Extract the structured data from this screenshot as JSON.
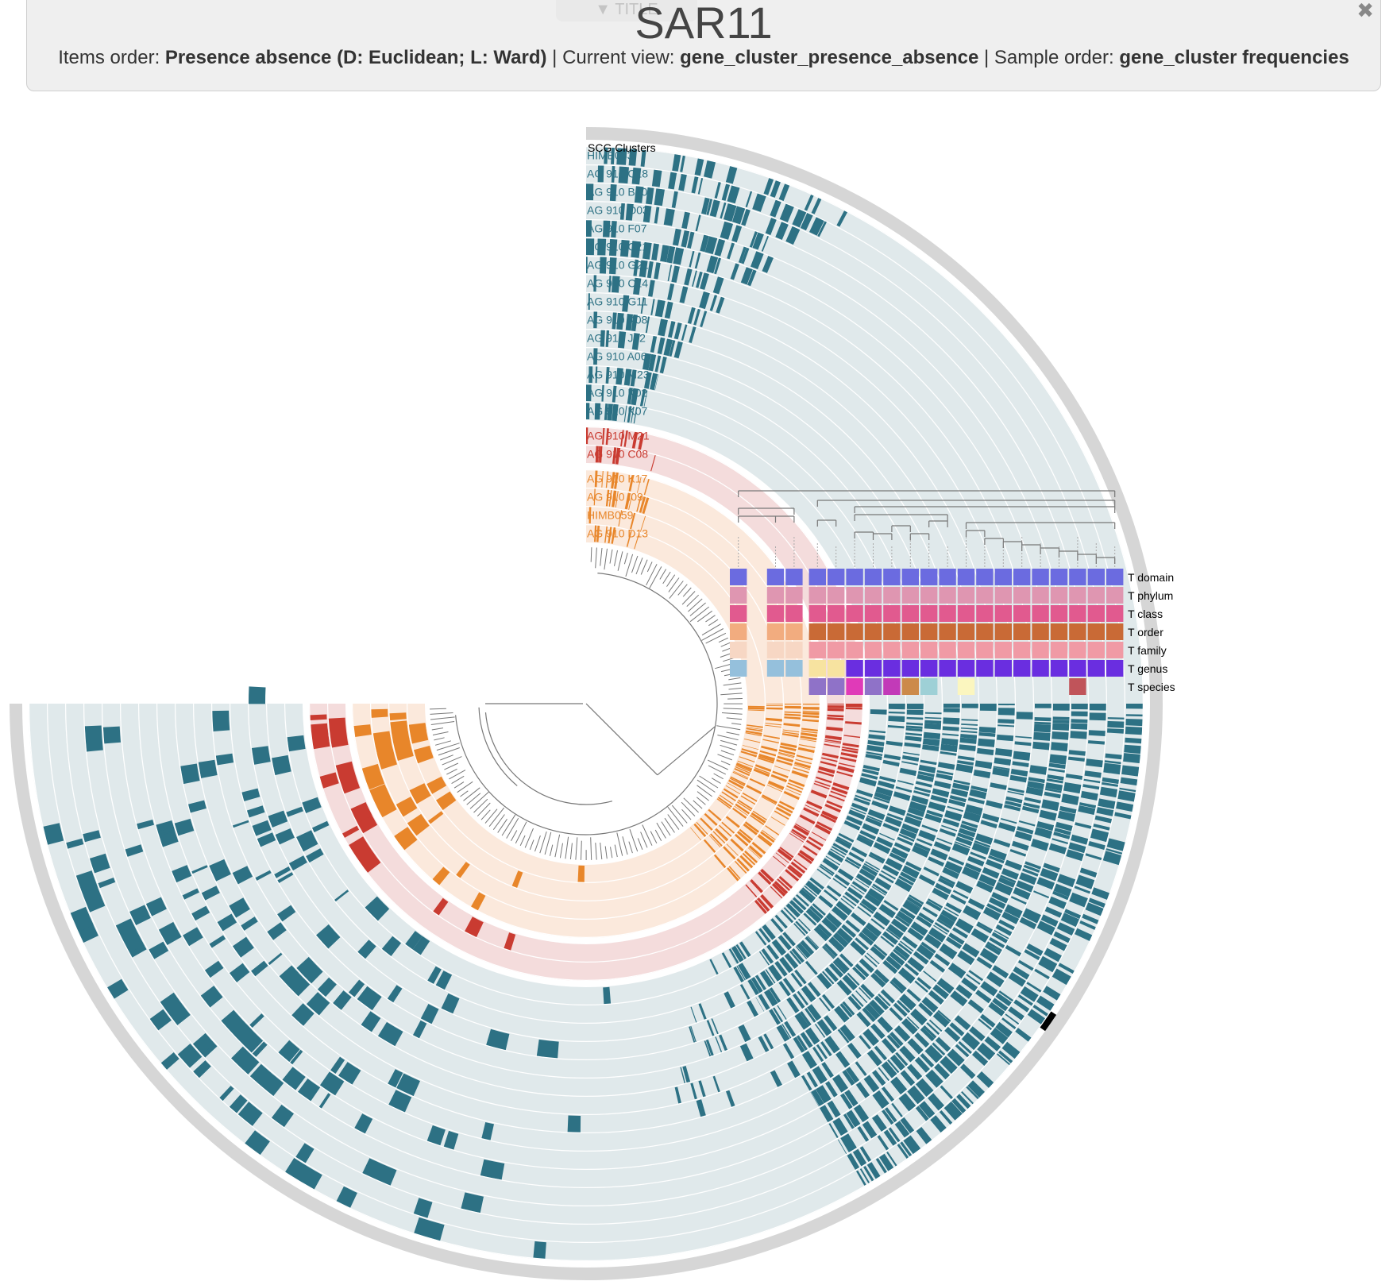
{
  "title_panel": {
    "toggle_label": "▼ TITLE",
    "title": "SAR11",
    "items_order_label": "Items order:",
    "items_order_value": "Presence absence (D: Euclidean; L: Ward)",
    "sep1": " | ",
    "current_view_label": "Current view:",
    "current_view_value": "gene_cluster_presence_absence",
    "sep2": " | ",
    "sample_order_label": "Sample order:",
    "sample_order_value": "gene_cluster frequencies",
    "close_icon": "close-icon"
  },
  "outer_layer_label": "SCG Clusters",
  "colors": {
    "teal": "#2d7184",
    "teal_bg": "#e0e9eb",
    "red": "#c93b31",
    "red_bg": "#f4dcdc",
    "orange": "#e8862a",
    "orange_bg": "#fbe9dc",
    "grey_ring": "#d6d6d6",
    "tree": "#777777"
  },
  "genome_layers": [
    {
      "name": "HIMB083",
      "group": "teal"
    },
    {
      "name": "AG 910 C18",
      "group": "teal"
    },
    {
      "name": "AG 910 B10",
      "group": "teal"
    },
    {
      "name": "AG 910 O03",
      "group": "teal"
    },
    {
      "name": "AG 910 F07",
      "group": "teal"
    },
    {
      "name": "AG 910 C21",
      "group": "teal"
    },
    {
      "name": "AG 910 G21",
      "group": "teal"
    },
    {
      "name": "AG 910 C14",
      "group": "teal"
    },
    {
      "name": "AG 910 G11",
      "group": "teal"
    },
    {
      "name": "AG 910 K08",
      "group": "teal"
    },
    {
      "name": "AG 910 J22",
      "group": "teal"
    },
    {
      "name": "AG 910 A06",
      "group": "teal"
    },
    {
      "name": "AG 910 M23",
      "group": "teal"
    },
    {
      "name": "AG 910 K02",
      "group": "teal"
    },
    {
      "name": "AG 910 K07",
      "group": "teal"
    },
    {
      "name": "AG 910 M21",
      "group": "red"
    },
    {
      "name": "AG 910 C08",
      "group": "red"
    },
    {
      "name": "AG 910 K17",
      "group": "orange"
    },
    {
      "name": "AG 910 I09",
      "group": "orange"
    },
    {
      "name": "HIMB059",
      "group": "orange"
    },
    {
      "name": "AG 910 D13",
      "group": "orange"
    }
  ],
  "taxonomy_rows": [
    {
      "label": "T domain",
      "colors": [
        "#6b6be0",
        "",
        "#6b6be0",
        "#6b6be0",
        "#6b6be0",
        "#6b6be0",
        "#6b6be0",
        "#6b6be0",
        "#6b6be0",
        "#6b6be0",
        "#6b6be0",
        "#6b6be0",
        "#6b6be0",
        "#6b6be0",
        "#6b6be0",
        "#6b6be0",
        "#6b6be0",
        "#6b6be0",
        "#6b6be0",
        "#6b6be0",
        "#6b6be0"
      ]
    },
    {
      "label": "T phylum",
      "colors": [
        "#df96b1",
        "",
        "#df96b1",
        "#df96b1",
        "#df96b1",
        "#df96b1",
        "#df96b1",
        "#df96b1",
        "#df96b1",
        "#df96b1",
        "#df96b1",
        "#df96b1",
        "#df96b1",
        "#df96b1",
        "#df96b1",
        "#df96b1",
        "#df96b1",
        "#df96b1",
        "#df96b1",
        "#df96b1",
        "#df96b1"
      ]
    },
    {
      "label": "T class",
      "colors": [
        "#e15a8f",
        "",
        "#e15a8f",
        "#e15a8f",
        "#e15a8f",
        "#e15a8f",
        "#e15a8f",
        "#e15a8f",
        "#e15a8f",
        "#e15a8f",
        "#e15a8f",
        "#e15a8f",
        "#e15a8f",
        "#e15a8f",
        "#e15a8f",
        "#e15a8f",
        "#e15a8f",
        "#e15a8f",
        "#e15a8f",
        "#e15a8f",
        "#e15a8f"
      ]
    },
    {
      "label": "T order",
      "colors": [
        "#f2ac7f",
        "",
        "#f2ac7f",
        "#f2ac7f",
        "#c96a36",
        "#c96a36",
        "#c96a36",
        "#c96a36",
        "#c96a36",
        "#c96a36",
        "#c96a36",
        "#c96a36",
        "#c96a36",
        "#c96a36",
        "#c96a36",
        "#c96a36",
        "#c96a36",
        "#c96a36",
        "#c96a36",
        "#c96a36",
        "#c96a36"
      ]
    },
    {
      "label": "T family",
      "colors": [
        "#f7d7c4",
        "",
        "#f7d7c4",
        "#f7d7c4",
        "#f09aa5",
        "#f09aa5",
        "#f09aa5",
        "#f09aa5",
        "#f09aa5",
        "#f09aa5",
        "#f09aa5",
        "#f09aa5",
        "#f09aa5",
        "#f09aa5",
        "#f09aa5",
        "#f09aa5",
        "#f09aa5",
        "#f09aa5",
        "#f09aa5",
        "#f09aa5",
        "#f09aa5"
      ]
    },
    {
      "label": "T genus",
      "colors": [
        "#95c0dc",
        "",
        "#95c0dc",
        "#95c0dc",
        "#f7e3a0",
        "#f7e3a0",
        "#6a2ee0",
        "#6a2ee0",
        "#6a2ee0",
        "#6a2ee0",
        "#6a2ee0",
        "#6a2ee0",
        "#6a2ee0",
        "#6a2ee0",
        "#6a2ee0",
        "#6a2ee0",
        "#6a2ee0",
        "#6a2ee0",
        "#6a2ee0",
        "#6a2ee0",
        "#6a2ee0"
      ]
    },
    {
      "label": "T species",
      "colors": [
        "",
        "",
        "",
        "",
        "#8f72c8",
        "#8f72c8",
        "#e03ab8",
        "#8f72c8",
        "#c23ab8",
        "#cc8a4a",
        "#9ed0d6",
        "",
        "#fbf6bf",
        "",
        "",
        "",
        "",
        "",
        "#c0545a",
        "",
        ""
      ]
    }
  ]
}
